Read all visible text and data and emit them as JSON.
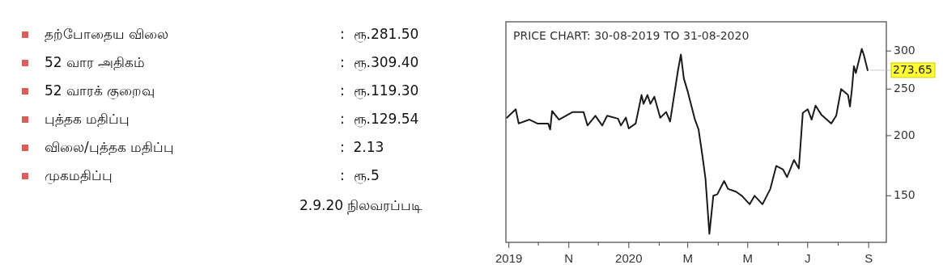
{
  "chart_data": [
    {
      "type": "other",
      "categories": [
        "தற்போதைய விலை",
        "52 வார அதிகம்",
        "52 வாரக் குறைவு",
        "புத்தக மதிப்பு",
        "விலை/புத்தக மதிப்பு",
        "முகமதிப்பு"
      ],
      "value_labels": [
        ":  ரூ.281.50",
        ":  ரூ.309.40",
        ":  ரூ.119.30",
        ":  ரூ.129.54",
        ":  2.13",
        ":  ரூ.5"
      ],
      "annotations": [
        "2.9.20 நிலவரப்படி"
      ]
    },
    {
      "type": "line",
      "title": "PRICE CHART: 30-08-2019 TO 31-08-2020",
      "log": "y",
      "color": "#1a1a1a",
      "x": [
        "2019-08-30",
        "2019-09-08",
        "2019-09-11",
        "2019-09-22",
        "2019-09-30",
        "2019-10-11",
        "2019-10-13",
        "2019-10-15",
        "2019-10-22",
        "2019-11-05",
        "2019-11-16",
        "2019-11-20",
        "2019-11-28",
        "2019-12-05",
        "2019-12-10",
        "2019-12-21",
        "2019-12-24",
        "2019-12-29",
        "2020-01-01",
        "2020-01-08",
        "2020-01-14",
        "2020-01-16",
        "2020-01-20",
        "2020-01-23",
        "2020-01-27",
        "2020-02-02",
        "2020-02-08",
        "2020-02-12",
        "2020-02-14",
        "2020-02-20",
        "2020-02-23",
        "2020-02-26",
        "2020-03-01",
        "2020-03-08",
        "2020-03-12",
        "2020-03-16",
        "2020-03-19",
        "2020-03-23",
        "2020-03-27",
        "2020-03-31",
        "2020-04-07",
        "2020-04-11",
        "2020-04-19",
        "2020-04-25",
        "2020-05-03",
        "2020-05-08",
        "2020-05-16",
        "2020-05-24",
        "2020-05-30",
        "2020-06-06",
        "2020-06-10",
        "2020-06-17",
        "2020-06-22",
        "2020-06-26",
        "2020-07-01",
        "2020-07-05",
        "2020-07-09",
        "2020-07-15",
        "2020-07-25",
        "2020-07-30",
        "2020-08-04",
        "2020-08-11",
        "2020-08-13",
        "2020-08-15",
        "2020-08-17",
        "2020-08-19",
        "2020-08-25",
        "2020-08-27",
        "2020-08-31"
      ],
      "values": [
        218,
        227,
        212,
        216,
        212,
        212,
        206,
        225,
        216,
        224,
        224,
        210,
        220,
        210,
        220,
        217,
        210,
        218,
        207,
        212,
        243,
        233,
        243,
        233,
        241,
        218,
        224,
        214,
        227,
        273,
        295,
        263,
        247,
        217,
        206,
        181,
        163,
        125,
        150,
        151,
        161,
        155,
        153,
        150,
        144,
        150,
        144,
        155,
        173,
        170,
        164,
        178,
        171,
        223,
        227,
        216,
        231,
        221,
        212,
        220,
        250,
        243,
        230,
        250,
        279,
        270,
        303,
        295,
        273.65
      ],
      "xlim": [
        "2019-08-29",
        "2020-09-19"
      ],
      "xticks": [
        {
          "value": "2019-09-01",
          "label": "2019"
        },
        {
          "value": "2019-10-01",
          "label": null
        },
        {
          "value": "2019-11-01",
          "label": "N"
        },
        {
          "value": "2019-12-01",
          "label": null
        },
        {
          "value": "2020-01-01",
          "label": "2020"
        },
        {
          "value": "2020-02-01",
          "label": null
        },
        {
          "value": "2020-03-01",
          "label": "M"
        },
        {
          "value": "2020-04-01",
          "label": null
        },
        {
          "value": "2020-05-01",
          "label": "M"
        },
        {
          "value": "2020-06-01",
          "label": null
        },
        {
          "value": "2020-07-01",
          "label": "J"
        },
        {
          "value": "2020-08-01",
          "label": null
        },
        {
          "value": "2020-09-01",
          "label": "S"
        }
      ],
      "ylim": [
        120,
        345
      ],
      "yticks": [
        150,
        200,
        250,
        300
      ],
      "annotations": [
        {
          "text": "273.65",
          "x": "2020-08-31",
          "y": 273.65
        }
      ]
    }
  ]
}
